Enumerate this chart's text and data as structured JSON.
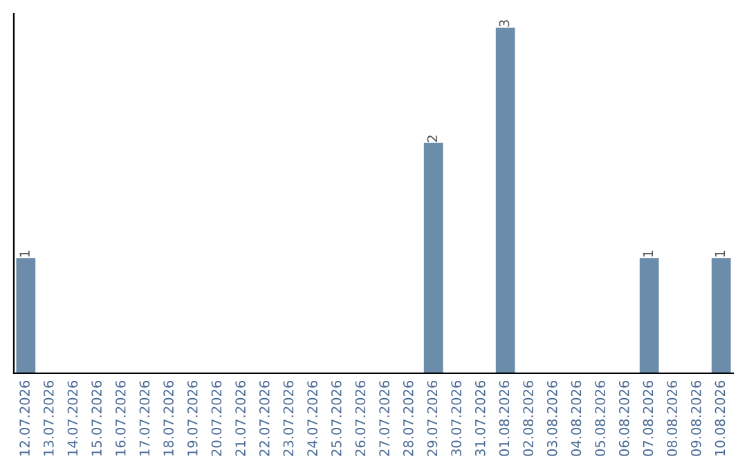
{
  "chart_data": {
    "type": "bar",
    "categories": [
      "12.07.2026",
      "13.07.2026",
      "14.07.2026",
      "15.07.2026",
      "16.07.2026",
      "17.07.2026",
      "18.07.2026",
      "19.07.2026",
      "20.07.2026",
      "21.07.2026",
      "22.07.2026",
      "23.07.2026",
      "24.07.2026",
      "25.07.2026",
      "26.07.2026",
      "27.07.2026",
      "28.07.2026",
      "29.07.2026",
      "30.07.2026",
      "31.07.2026",
      "01.08.2026",
      "02.08.2026",
      "03.08.2026",
      "04.08.2026",
      "05.08.2026",
      "06.08.2026",
      "07.08.2026",
      "08.08.2026",
      "09.08.2026",
      "10.08.2026"
    ],
    "values": [
      1,
      0,
      0,
      0,
      0,
      0,
      0,
      0,
      0,
      0,
      0,
      0,
      0,
      0,
      0,
      0,
      0,
      2,
      0,
      0,
      3,
      0,
      0,
      0,
      0,
      0,
      1,
      0,
      0,
      1
    ],
    "value_labels": [
      "1",
      null,
      null,
      null,
      null,
      null,
      null,
      null,
      null,
      null,
      null,
      null,
      null,
      null,
      null,
      null,
      null,
      "2",
      null,
      null,
      "3",
      null,
      null,
      null,
      null,
      null,
      "1",
      null,
      null,
      "1"
    ],
    "color": "#6b8caa",
    "grid": false,
    "legend": false
  }
}
